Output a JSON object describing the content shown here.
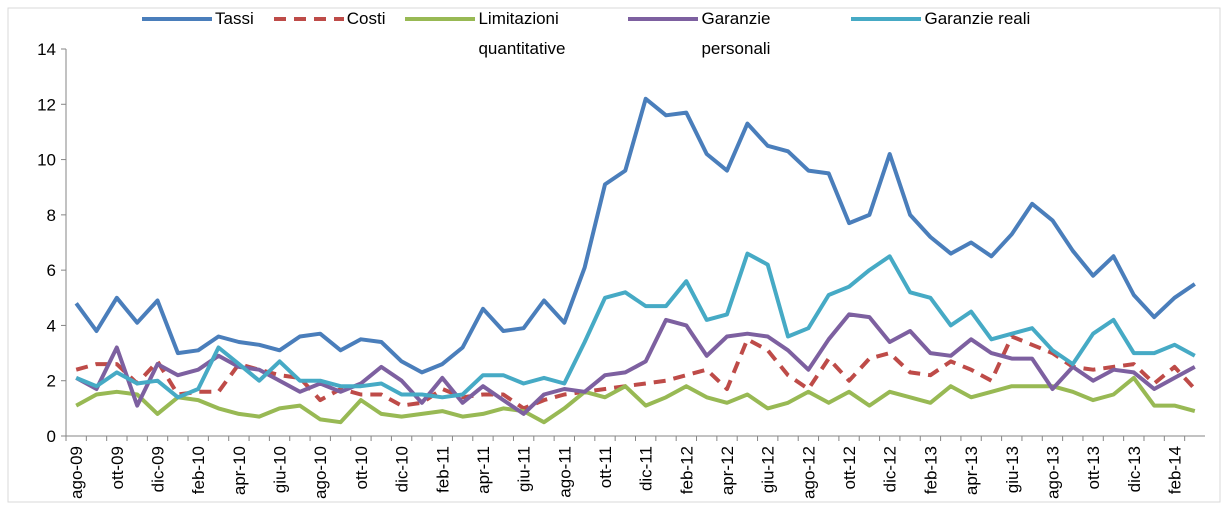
{
  "chart_data": {
    "type": "line",
    "categories": [
      "ago-09",
      null,
      "ott-09",
      null,
      "dic-09",
      null,
      "feb-10",
      null,
      "apr-10",
      null,
      "giu-10",
      null,
      "ago-10",
      null,
      "ott-10",
      null,
      "dic-10",
      null,
      "feb-11",
      null,
      "apr-11",
      null,
      "giu-11",
      null,
      "ago-11",
      null,
      "ott-11",
      null,
      "dic-11",
      null,
      "feb-12",
      null,
      "apr-12",
      null,
      "giu-12",
      null,
      "ago-12",
      null,
      "ott-12",
      null,
      "dic-12",
      null,
      "feb-13",
      null,
      "apr-13",
      null,
      "giu-13",
      null,
      "ago-13",
      null,
      "ott-13",
      null,
      "dic-13",
      null,
      "feb-14",
      null
    ],
    "series": [
      {
        "name": "Tassi",
        "color": "#4a7ebb",
        "dashed": false,
        "values": [
          4.8,
          3.8,
          5.0,
          4.1,
          4.9,
          3.0,
          3.1,
          3.6,
          3.4,
          3.3,
          3.1,
          3.6,
          3.7,
          3.1,
          3.5,
          3.4,
          2.7,
          2.3,
          2.6,
          3.2,
          4.6,
          3.8,
          3.9,
          4.9,
          4.1,
          6.1,
          9.1,
          9.6,
          12.2,
          11.6,
          11.7,
          10.2,
          9.6,
          11.3,
          10.5,
          10.3,
          9.6,
          9.5,
          7.7,
          8.0,
          10.2,
          8.0,
          7.2,
          6.6,
          7.0,
          6.5,
          7.3,
          8.4,
          7.8,
          6.7,
          5.8,
          6.5,
          5.1,
          4.3,
          5.0,
          5.5
        ]
      },
      {
        "name": "Costi",
        "color": "#be4b48",
        "dashed": true,
        "values": [
          2.4,
          2.6,
          2.6,
          1.9,
          2.7,
          1.5,
          1.6,
          1.6,
          2.6,
          2.4,
          2.2,
          2.1,
          1.3,
          1.7,
          1.5,
          1.5,
          1.1,
          1.2,
          1.7,
          1.4,
          1.5,
          1.5,
          1.0,
          1.3,
          1.5,
          1.6,
          1.7,
          1.8,
          1.9,
          2.0,
          2.2,
          2.4,
          1.7,
          3.5,
          3.1,
          2.2,
          1.7,
          2.8,
          2.0,
          2.8,
          3.0,
          2.3,
          2.2,
          2.7,
          2.4,
          2.0,
          3.6,
          3.3,
          3.0,
          2.5,
          2.4,
          2.5,
          2.6,
          1.9,
          2.5,
          1.7
        ]
      },
      {
        "name": "Limitazioni quantitative",
        "color": "#98b954",
        "dashed": false,
        "values": [
          1.1,
          1.5,
          1.6,
          1.5,
          0.8,
          1.4,
          1.3,
          1.0,
          0.8,
          0.7,
          1.0,
          1.1,
          0.6,
          0.5,
          1.3,
          0.8,
          0.7,
          0.8,
          0.9,
          0.7,
          0.8,
          1.0,
          0.9,
          0.5,
          1.0,
          1.6,
          1.4,
          1.8,
          1.1,
          1.4,
          1.8,
          1.4,
          1.2,
          1.5,
          1.0,
          1.2,
          1.6,
          1.2,
          1.6,
          1.1,
          1.6,
          1.4,
          1.2,
          1.8,
          1.4,
          1.6,
          1.8,
          1.8,
          1.8,
          1.6,
          1.3,
          1.5,
          2.1,
          1.1,
          1.1,
          0.9
        ]
      },
      {
        "name": "Garanzie personali",
        "color": "#7d60a0",
        "dashed": false,
        "values": [
          2.1,
          1.7,
          3.2,
          1.1,
          2.6,
          2.2,
          2.4,
          2.9,
          2.5,
          2.4,
          2.0,
          1.6,
          1.9,
          1.6,
          1.9,
          2.5,
          2.0,
          1.2,
          2.1,
          1.2,
          1.8,
          1.3,
          0.8,
          1.5,
          1.7,
          1.6,
          2.2,
          2.3,
          2.7,
          4.2,
          4.0,
          2.9,
          3.6,
          3.7,
          3.6,
          3.1,
          2.4,
          3.5,
          4.4,
          4.3,
          3.4,
          3.8,
          3.0,
          2.9,
          3.5,
          3.0,
          2.8,
          2.8,
          1.7,
          2.5,
          2.0,
          2.4,
          2.3,
          1.7,
          2.1,
          2.5
        ]
      },
      {
        "name": "Garanzie reali",
        "color": "#46aac5",
        "dashed": false,
        "values": [
          2.1,
          1.8,
          2.3,
          1.9,
          2.0,
          1.4,
          1.7,
          3.2,
          2.6,
          2.0,
          2.7,
          2.0,
          2.0,
          1.8,
          1.8,
          1.9,
          1.5,
          1.5,
          1.4,
          1.5,
          2.2,
          2.2,
          1.9,
          2.1,
          1.9,
          3.4,
          5.0,
          5.2,
          4.7,
          4.7,
          5.6,
          4.2,
          4.4,
          6.6,
          6.2,
          3.6,
          3.9,
          5.1,
          5.4,
          6.0,
          6.5,
          5.2,
          5.0,
          4.0,
          4.5,
          3.5,
          3.7,
          3.9,
          3.1,
          2.6,
          3.7,
          4.2,
          3.0,
          3.0,
          3.3,
          2.9
        ]
      }
    ],
    "ylim": [
      0,
      14
    ],
    "yticks": [
      0,
      2,
      4,
      6,
      8,
      10,
      12,
      14
    ],
    "grid": false
  }
}
